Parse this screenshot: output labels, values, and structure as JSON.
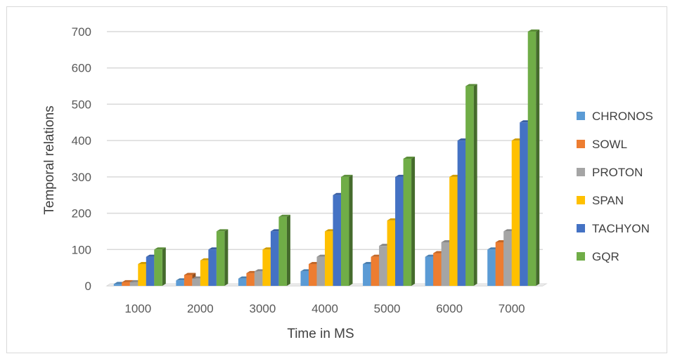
{
  "chart_data": {
    "type": "bar",
    "style": "3d-clustered-column",
    "categories": [
      "1000",
      "2000",
      "3000",
      "4000",
      "5000",
      "6000",
      "7000"
    ],
    "series": [
      {
        "name": "CHRONOS",
        "color": "#5b9bd5",
        "values": [
          5,
          15,
          20,
          40,
          60,
          80,
          100
        ]
      },
      {
        "name": "SOWL",
        "color": "#ed7d31",
        "values": [
          10,
          30,
          35,
          60,
          80,
          90,
          120
        ]
      },
      {
        "name": "PROTON",
        "color": "#a5a5a5",
        "values": [
          10,
          20,
          40,
          80,
          110,
          120,
          150
        ]
      },
      {
        "name": "SPAN",
        "color": "#ffc000",
        "values": [
          60,
          70,
          100,
          150,
          180,
          300,
          400
        ]
      },
      {
        "name": "TACHYON",
        "color": "#4472c4",
        "values": [
          80,
          100,
          150,
          250,
          300,
          400,
          450
        ]
      },
      {
        "name": "GQR",
        "color": "#70ad47",
        "values": [
          100,
          150,
          190,
          300,
          350,
          550,
          700
        ]
      }
    ],
    "yticks": [
      "0",
      "100",
      "200",
      "300",
      "400",
      "500",
      "600",
      "700"
    ],
    "ylim": [
      0,
      700
    ],
    "xlabel": "Time in MS",
    "ylabel": "Temporal relations",
    "grid": true,
    "legend_position": "right",
    "gridline_color": "#d9d9d9"
  }
}
